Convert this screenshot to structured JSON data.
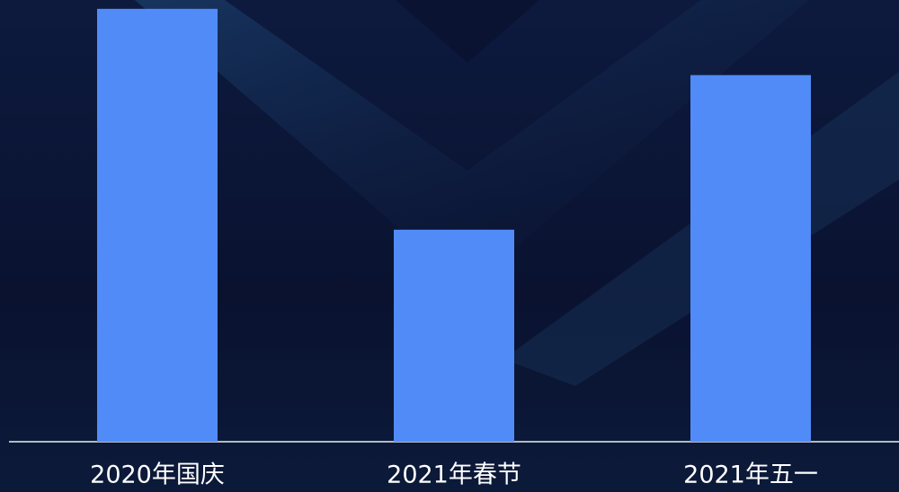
{
  "chart_data": {
    "type": "bar",
    "categories": [
      "2020年国庆",
      "2021年春节",
      "2021年五一"
    ],
    "values": [
      98,
      48,
      83
    ],
    "color": "#518bf7",
    "ylim": [
      0,
      100
    ]
  }
}
